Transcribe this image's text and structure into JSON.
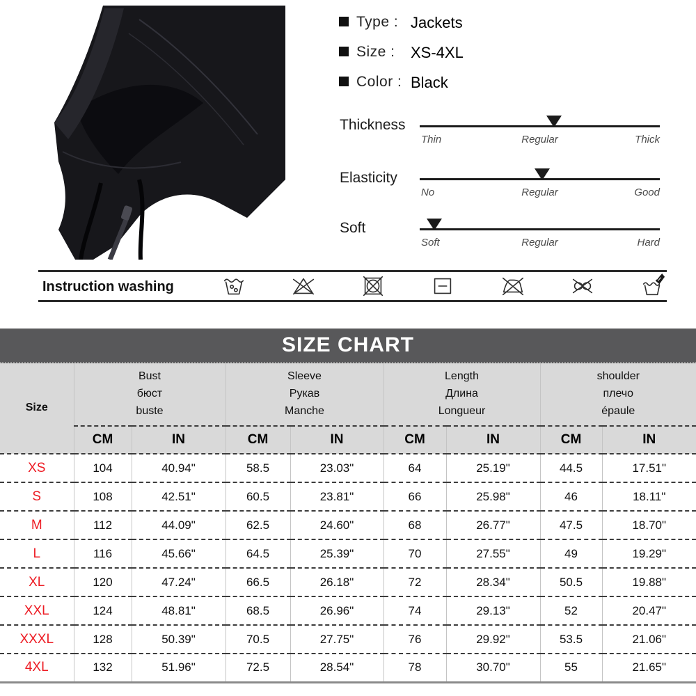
{
  "product": {
    "photo_alt": "black hooded zip jacket close-up",
    "attributes": [
      {
        "label": "Type :",
        "value": "Jackets"
      },
      {
        "label": "Size :",
        "value": "XS-4XL"
      },
      {
        "label": "Color :",
        "value": "Black"
      }
    ],
    "sliders": [
      {
        "name": "Thickness",
        "labels": {
          "left": "Thin",
          "mid": "Regular",
          "right": "Thick"
        },
        "marker_pct": 56
      },
      {
        "name": "Elasticity",
        "labels": {
          "left": "No",
          "mid": "Regular",
          "right": "Good"
        },
        "marker_pct": 51
      },
      {
        "name": "Soft",
        "labels": {
          "left": "Soft",
          "mid": "Regular",
          "right": "Hard"
        },
        "marker_pct": 6
      }
    ]
  },
  "washing": {
    "label": "Instruction washing",
    "symbols": [
      "machine-wash",
      "do-not-bleach",
      "do-not-tumble-dry",
      "dry-flat",
      "do-not-iron",
      "do-not-wring",
      "hand-wash"
    ]
  },
  "size_chart": {
    "title": "SIZE CHART",
    "size_header": "Size",
    "unit_cm": "CM",
    "unit_in": "IN",
    "groups": [
      {
        "en": "Bust",
        "ru": "бюст",
        "fr": "buste"
      },
      {
        "en": "Sleeve",
        "ru": "Рукав",
        "fr": "Manche"
      },
      {
        "en": "Length",
        "ru": "Длина",
        "fr": "Longueur"
      },
      {
        "en": "shoulder",
        "ru": "плечо",
        "fr": "épaule"
      }
    ],
    "rows": [
      {
        "size": "XS",
        "cells": [
          "104",
          "40.94\"",
          "58.5",
          "23.03\"",
          "64",
          "25.19\"",
          "44.5",
          "17.51\""
        ]
      },
      {
        "size": "S",
        "cells": [
          "108",
          "42.51\"",
          "60.5",
          "23.81\"",
          "66",
          "25.98\"",
          "46",
          "18.11\""
        ]
      },
      {
        "size": "M",
        "cells": [
          "112",
          "44.09\"",
          "62.5",
          "24.60\"",
          "68",
          "26.77\"",
          "47.5",
          "18.70\""
        ]
      },
      {
        "size": "L",
        "cells": [
          "116",
          "45.66\"",
          "64.5",
          "25.39\"",
          "70",
          "27.55\"",
          "49",
          "19.29\""
        ]
      },
      {
        "size": "XL",
        "cells": [
          "120",
          "47.24\"",
          "66.5",
          "26.18\"",
          "72",
          "28.34\"",
          "50.5",
          "19.88\""
        ]
      },
      {
        "size": "XXL",
        "cells": [
          "124",
          "48.81\"",
          "68.5",
          "26.96\"",
          "74",
          "29.13\"",
          "52",
          "20.47\""
        ]
      },
      {
        "size": "XXXL",
        "cells": [
          "128",
          "50.39\"",
          "70.5",
          "27.75\"",
          "76",
          "29.92\"",
          "53.5",
          "21.06\""
        ]
      },
      {
        "size": "4XL",
        "cells": [
          "132",
          "51.96\"",
          "72.5",
          "28.54\"",
          "78",
          "30.70\"",
          "55",
          "21.65\""
        ]
      }
    ]
  },
  "colors": {
    "banner_bg": "#58585a",
    "header_bg": "#d9d9d9",
    "size_label_red": "#ed1c24",
    "line_black": "#1b1b1b"
  }
}
